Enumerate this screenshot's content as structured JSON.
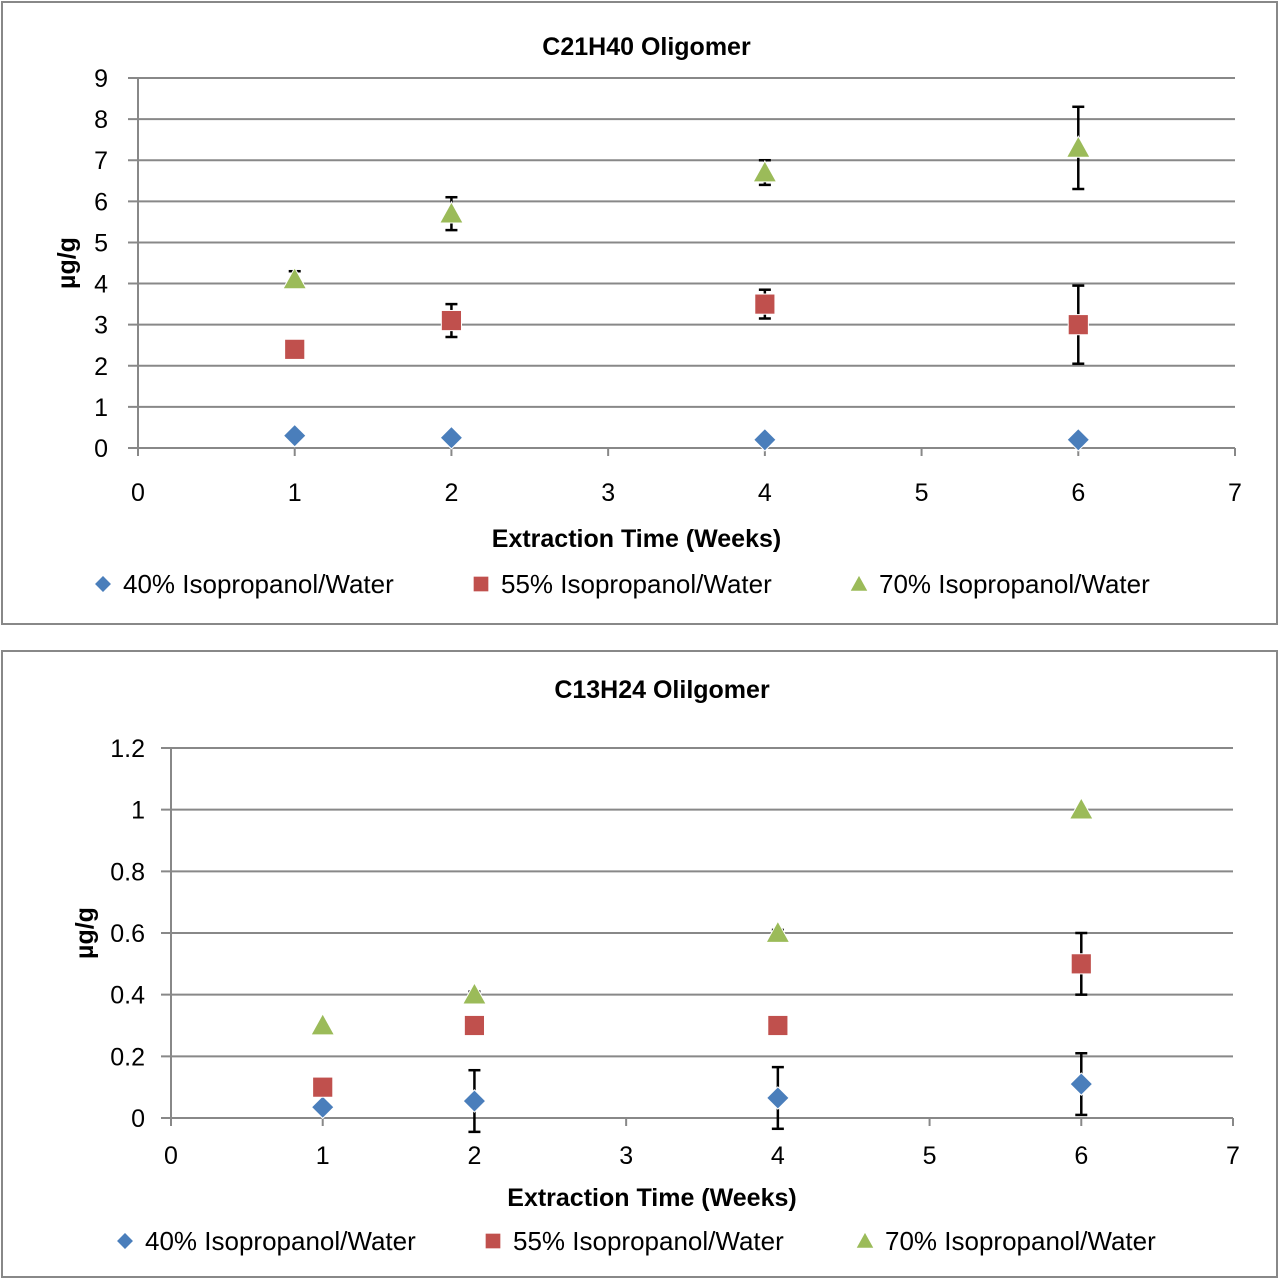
{
  "colors": {
    "series_40": "#4a7ebb",
    "series_55": "#c0504d",
    "series_70": "#9bbb59",
    "grid": "#888888",
    "error_bar": "#000000"
  },
  "chart_data": [
    {
      "type": "scatter",
      "title": "C21H40 Oligomer",
      "xlabel": "Extraction Time (Weeks)",
      "ylabel": "µg/g",
      "xlim": [
        0,
        7
      ],
      "ylim": [
        0,
        9
      ],
      "x_ticks": [
        0,
        1,
        2,
        3,
        4,
        5,
        6,
        7
      ],
      "y_ticks": [
        0,
        1,
        2,
        3,
        4,
        5,
        6,
        7,
        8,
        9
      ],
      "grid": "horizontal",
      "legend_position": "bottom",
      "series": [
        {
          "name": "40% Isopropanol/Water",
          "marker": "diamond",
          "x": [
            1,
            2,
            4,
            6
          ],
          "y": [
            0.3,
            0.25,
            0.2,
            0.2
          ],
          "error": [
            0,
            0,
            0,
            0
          ]
        },
        {
          "name": "55% Isopropanol/Water",
          "marker": "square",
          "x": [
            1,
            2,
            4,
            6
          ],
          "y": [
            2.4,
            3.1,
            3.5,
            3.0
          ],
          "error": [
            0,
            0.4,
            0.35,
            0.95
          ]
        },
        {
          "name": "70% Isopropanol/Water",
          "marker": "triangle",
          "x": [
            1,
            2,
            4,
            6
          ],
          "y": [
            4.1,
            5.7,
            6.7,
            7.3
          ],
          "error": [
            0.2,
            0.4,
            0.3,
            1.0
          ]
        }
      ]
    },
    {
      "type": "scatter",
      "title": "C13H24 Olilgomer",
      "xlabel": "Extraction Time (Weeks)",
      "ylabel": "µg/g",
      "xlim": [
        0,
        7
      ],
      "ylim": [
        0,
        1.2
      ],
      "x_ticks": [
        0,
        1,
        2,
        3,
        4,
        5,
        6,
        7
      ],
      "y_ticks": [
        0,
        0.2,
        0.4,
        0.6,
        0.8,
        1,
        1.2
      ],
      "grid": "horizontal",
      "legend_position": "bottom",
      "series": [
        {
          "name": "40% Isopropanol/Water",
          "marker": "diamond",
          "x": [
            1,
            2,
            4,
            6
          ],
          "y": [
            0.035,
            0.055,
            0.065,
            0.11
          ],
          "error": [
            0,
            0.1,
            0.1,
            0.1
          ]
        },
        {
          "name": "55% Isopropanol/Water",
          "marker": "square",
          "x": [
            1,
            2,
            4,
            6
          ],
          "y": [
            0.1,
            0.3,
            0.3,
            0.5
          ],
          "error": [
            0,
            0,
            0,
            0.1
          ]
        },
        {
          "name": "70% Isopropanol/Water",
          "marker": "triangle",
          "x": [
            1,
            2,
            4,
            6
          ],
          "y": [
            0.3,
            0.4,
            0.6,
            1.0
          ],
          "error": [
            0,
            0.01,
            0.01,
            0
          ]
        }
      ]
    }
  ]
}
